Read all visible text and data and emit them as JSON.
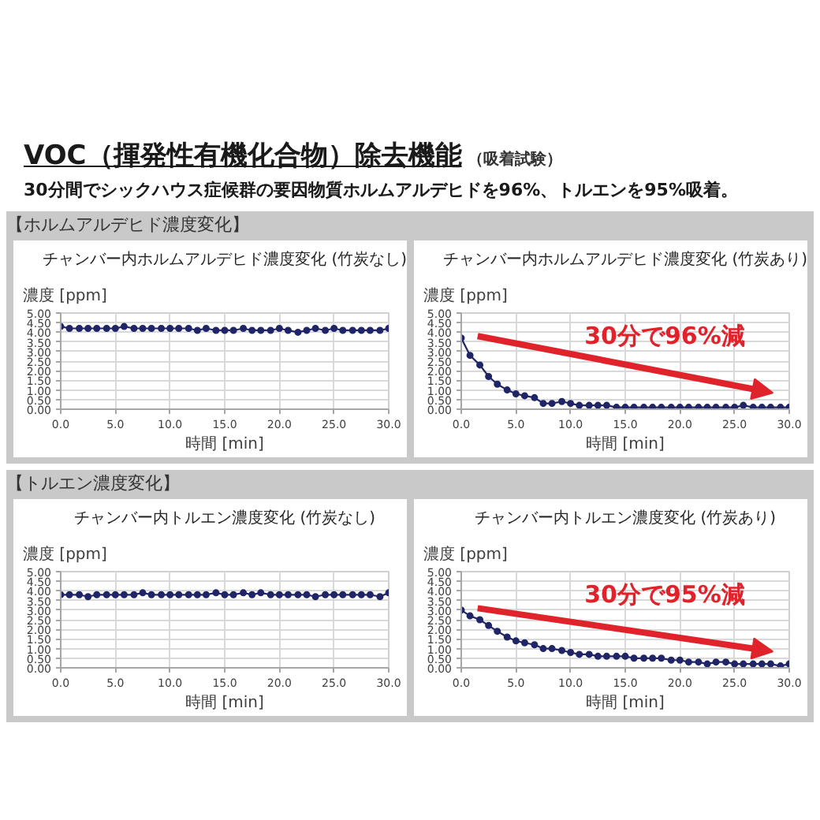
{
  "chart_data": [
    {
      "type": "other",
      "title": "VOC（揮発性有機化合物）除去機能",
      "subtitle": "30分間でシックハウス症候群の要因物質ホルムアルデヒドを96%、トルエンを95%吸着。",
      "annotations": [
        "（吸着試験）"
      ]
    },
    {
      "type": "other",
      "title": "【ホルムアルデヒド濃度変化】"
    },
    {
      "type": "line",
      "title": "チャンバー内ホルムアルデヒド濃度変化 (竹炭なし)",
      "xlabel": "時間 [min]",
      "ylabel": "濃度 [ppm]",
      "x": [
        0,
        0.8,
        1.7,
        2.5,
        3.3,
        4.2,
        5,
        5.8,
        6.7,
        7.5,
        8.3,
        9.2,
        10,
        10.8,
        11.7,
        12.5,
        13.3,
        14.2,
        15,
        15.8,
        16.7,
        17.5,
        18.3,
        19.2,
        20,
        20.8,
        21.7,
        22.5,
        23.3,
        24.2,
        25,
        25.8,
        26.7,
        27.5,
        28.3,
        29.2,
        30
      ],
      "series": [
        {
          "color": "#1f2566",
          "values": [
            4.3,
            4.2,
            4.2,
            4.2,
            4.2,
            4.2,
            4.2,
            4.3,
            4.2,
            4.2,
            4.2,
            4.2,
            4.2,
            4.2,
            4.2,
            4.1,
            4.2,
            4.1,
            4.1,
            4.1,
            4.2,
            4.1,
            4.1,
            4.1,
            4.2,
            4.1,
            4.0,
            4.1,
            4.2,
            4.1,
            4.2,
            4.1,
            4.1,
            4.1,
            4.1,
            4.1,
            4.2
          ]
        }
      ],
      "xlim": [
        0,
        30
      ],
      "ylim": [
        0,
        5
      ],
      "xticks": [
        {
          "value": 0,
          "label": "0.0"
        },
        {
          "value": 5,
          "label": "5.0"
        },
        {
          "value": 10,
          "label": "10.0"
        },
        {
          "value": 15,
          "label": "15.0"
        },
        {
          "value": 20,
          "label": "20.0"
        },
        {
          "value": 25,
          "label": "25.0"
        },
        {
          "value": 30,
          "label": "30.0"
        }
      ],
      "yticks": [
        {
          "value": 0,
          "label": "0.00"
        },
        {
          "value": 0.5,
          "label": "0.50"
        },
        {
          "value": 1,
          "label": "1.00"
        },
        {
          "value": 1.5,
          "label": "1.50"
        },
        {
          "value": 2,
          "label": "2.00"
        },
        {
          "value": 2.5,
          "label": "2.50"
        },
        {
          "value": 3,
          "label": "3.00"
        },
        {
          "value": 3.5,
          "label": "3.50"
        },
        {
          "value": 4,
          "label": "4.00"
        },
        {
          "value": 4.5,
          "label": "4.50"
        },
        {
          "value": 5,
          "label": "5.00"
        }
      ],
      "grid": true,
      "marker": "circle",
      "line_style": "solid"
    },
    {
      "type": "line",
      "title": "チャンバー内ホルムアルデヒド濃度変化 (竹炭あり)",
      "xlabel": "時間 [min]",
      "ylabel": "濃度 [ppm]",
      "annotations": [
        "30分で96%減"
      ],
      "x": [
        0,
        0.8,
        1.7,
        2.5,
        3.3,
        4.2,
        5,
        5.8,
        6.7,
        7.5,
        8.3,
        9.2,
        10,
        10.8,
        11.7,
        12.5,
        13.3,
        14.2,
        15,
        15.8,
        16.7,
        17.5,
        18.3,
        19.2,
        20,
        20.8,
        21.7,
        22.5,
        23.3,
        24.2,
        25,
        25.8,
        26.7,
        27.5,
        28.3,
        29.2,
        30
      ],
      "series": [
        {
          "color": "#1f2566",
          "values": [
            3.7,
            2.8,
            2.3,
            1.7,
            1.3,
            1.0,
            0.8,
            0.7,
            0.6,
            0.3,
            0.3,
            0.4,
            0.3,
            0.2,
            0.2,
            0.2,
            0.2,
            0.1,
            0.1,
            0.1,
            0.1,
            0.1,
            0.1,
            0.1,
            0.1,
            0.1,
            0.1,
            0.1,
            0.1,
            0.1,
            0.1,
            0.2,
            0.1,
            0.1,
            0.1,
            0.1,
            0.1
          ]
        }
      ],
      "xlim": [
        0,
        30
      ],
      "ylim": [
        0,
        5
      ],
      "xticks": [
        {
          "value": 0,
          "label": "0.0"
        },
        {
          "value": 5,
          "label": "5.0"
        },
        {
          "value": 10,
          "label": "10.0"
        },
        {
          "value": 15,
          "label": "15.0"
        },
        {
          "value": 20,
          "label": "20.0"
        },
        {
          "value": 25,
          "label": "25.0"
        },
        {
          "value": 30,
          "label": "30.0"
        }
      ],
      "yticks": [
        {
          "value": 0,
          "label": "0.00"
        },
        {
          "value": 0.5,
          "label": "0.50"
        },
        {
          "value": 1,
          "label": "1.00"
        },
        {
          "value": 1.5,
          "label": "1.50"
        },
        {
          "value": 2,
          "label": "2.00"
        },
        {
          "value": 2.5,
          "label": "2.50"
        },
        {
          "value": 3,
          "label": "3.00"
        },
        {
          "value": 3.5,
          "label": "3.50"
        },
        {
          "value": 4,
          "label": "4.00"
        },
        {
          "value": 4.5,
          "label": "4.50"
        },
        {
          "value": 5,
          "label": "5.00"
        }
      ],
      "grid": true,
      "marker": "circle",
      "line_style": "solid"
    },
    {
      "type": "other",
      "title": "【トルエン濃度変化】"
    },
    {
      "type": "line",
      "title": "チャンバー内トルエン濃度変化 (竹炭なし)",
      "xlabel": "時間 [min]",
      "ylabel": "濃度 [ppm]",
      "x": [
        0,
        0.8,
        1.7,
        2.5,
        3.3,
        4.2,
        5,
        5.8,
        6.7,
        7.5,
        8.3,
        9.2,
        10,
        10.8,
        11.7,
        12.5,
        13.3,
        14.2,
        15,
        15.8,
        16.7,
        17.5,
        18.3,
        19.2,
        20,
        20.8,
        21.7,
        22.5,
        23.3,
        24.2,
        25,
        25.8,
        26.7,
        27.5,
        28.3,
        29.2,
        30
      ],
      "series": [
        {
          "color": "#1f2566",
          "values": [
            3.8,
            3.8,
            3.8,
            3.7,
            3.8,
            3.8,
            3.8,
            3.8,
            3.8,
            3.9,
            3.8,
            3.8,
            3.8,
            3.8,
            3.8,
            3.8,
            3.8,
            3.9,
            3.8,
            3.8,
            3.9,
            3.8,
            3.9,
            3.8,
            3.8,
            3.8,
            3.8,
            3.8,
            3.7,
            3.8,
            3.8,
            3.8,
            3.8,
            3.8,
            3.8,
            3.7,
            3.9
          ]
        }
      ],
      "xlim": [
        0,
        30
      ],
      "ylim": [
        0,
        5
      ],
      "xticks": [
        {
          "value": 0,
          "label": "0.0"
        },
        {
          "value": 5,
          "label": "5.0"
        },
        {
          "value": 10,
          "label": "10.0"
        },
        {
          "value": 15,
          "label": "15.0"
        },
        {
          "value": 20,
          "label": "20.0"
        },
        {
          "value": 25,
          "label": "25.0"
        },
        {
          "value": 30,
          "label": "30.0"
        }
      ],
      "yticks": [
        {
          "value": 0,
          "label": "0.00"
        },
        {
          "value": 0.5,
          "label": "0.50"
        },
        {
          "value": 1,
          "label": "1.00"
        },
        {
          "value": 1.5,
          "label": "1.50"
        },
        {
          "value": 2,
          "label": "2.00"
        },
        {
          "value": 2.5,
          "label": "2.50"
        },
        {
          "value": 3,
          "label": "3.00"
        },
        {
          "value": 3.5,
          "label": "3.50"
        },
        {
          "value": 4,
          "label": "4.00"
        },
        {
          "value": 4.5,
          "label": "4.50"
        },
        {
          "value": 5,
          "label": "5.00"
        }
      ],
      "grid": true,
      "marker": "circle",
      "line_style": "solid"
    },
    {
      "type": "line",
      "title": "チャンバー内トルエン濃度変化 (竹炭あり)",
      "xlabel": "時間 [min]",
      "ylabel": "濃度 [ppm]",
      "annotations": [
        "30分で95%減"
      ],
      "x": [
        0,
        0.8,
        1.7,
        2.5,
        3.3,
        4.2,
        5,
        5.8,
        6.7,
        7.5,
        8.3,
        9.2,
        10,
        10.8,
        11.7,
        12.5,
        13.3,
        14.2,
        15,
        15.8,
        16.7,
        17.5,
        18.3,
        19.2,
        20,
        20.8,
        21.7,
        22.5,
        23.3,
        24.2,
        25,
        25.8,
        26.7,
        27.5,
        28.3,
        29.2,
        30
      ],
      "series": [
        {
          "color": "#1f2566",
          "values": [
            3.0,
            2.7,
            2.5,
            2.2,
            1.9,
            1.6,
            1.4,
            1.3,
            1.2,
            1.0,
            1.0,
            0.9,
            0.8,
            0.7,
            0.7,
            0.6,
            0.6,
            0.6,
            0.6,
            0.5,
            0.5,
            0.5,
            0.5,
            0.4,
            0.4,
            0.3,
            0.3,
            0.2,
            0.3,
            0.3,
            0.2,
            0.2,
            0.2,
            0.2,
            0.2,
            0.1,
            0.2
          ]
        }
      ],
      "xlim": [
        0,
        30
      ],
      "ylim": [
        0,
        5
      ],
      "xticks": [
        {
          "value": 0,
          "label": "0.0"
        },
        {
          "value": 5,
          "label": "5.0"
        },
        {
          "value": 10,
          "label": "10.0"
        },
        {
          "value": 15,
          "label": "15.0"
        },
        {
          "value": 20,
          "label": "20.0"
        },
        {
          "value": 25,
          "label": "25.0"
        },
        {
          "value": 30,
          "label": "30.0"
        }
      ],
      "yticks": [
        {
          "value": 0,
          "label": "0.00"
        },
        {
          "value": 0.5,
          "label": "0.50"
        },
        {
          "value": 1,
          "label": "1.00"
        },
        {
          "value": 1.5,
          "label": "1.50"
        },
        {
          "value": 2,
          "label": "2.00"
        },
        {
          "value": 2.5,
          "label": "2.50"
        },
        {
          "value": 3,
          "label": "3.00"
        },
        {
          "value": 3.5,
          "label": "3.50"
        },
        {
          "value": 4,
          "label": "4.00"
        },
        {
          "value": 4.5,
          "label": "4.50"
        },
        {
          "value": 5,
          "label": "5.00"
        }
      ],
      "grid": true,
      "marker": "circle",
      "line_style": "solid"
    }
  ]
}
